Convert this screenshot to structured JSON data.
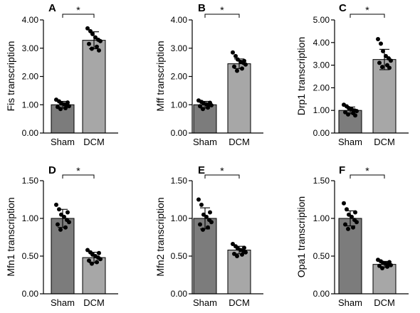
{
  "chart_data": [
    {
      "type": "bar",
      "panel_label": "A",
      "ylabel": "Fis transcription",
      "categories": [
        "Sham",
        "DCM"
      ],
      "values": [
        1.0,
        3.28
      ],
      "error": [
        0.12,
        0.3
      ],
      "ylim": [
        0,
        4
      ],
      "yticks": [
        "0.00",
        "1.00",
        "2.00",
        "3.00",
        "4.00"
      ],
      "significance": "*",
      "points": [
        [
          1.18,
          1.12,
          1.05,
          1.02,
          0.98,
          0.95,
          0.92,
          0.88,
          0.85,
          1.08
        ],
        [
          3.7,
          3.6,
          3.5,
          3.38,
          3.3,
          3.25,
          3.15,
          3.05,
          2.98,
          2.92
        ]
      ],
      "colors": [
        "#7c7c7c",
        "#a7a7a7"
      ]
    },
    {
      "type": "bar",
      "panel_label": "B",
      "ylabel": "Mff transcription",
      "categories": [
        "Sham",
        "DCM"
      ],
      "values": [
        1.0,
        2.45
      ],
      "error": [
        0.12,
        0.17
      ],
      "ylim": [
        0,
        4
      ],
      "yticks": [
        "0.00",
        "1.00",
        "2.00",
        "3.00",
        "4.00"
      ],
      "significance": "*",
      "points": [
        [
          1.15,
          1.1,
          1.05,
          1.02,
          1.0,
          0.98,
          0.95,
          0.9,
          0.85,
          1.07
        ],
        [
          2.85,
          2.72,
          2.6,
          2.52,
          2.48,
          2.42,
          2.35,
          2.28,
          2.2,
          2.55
        ]
      ],
      "colors": [
        "#7c7c7c",
        "#a7a7a7"
      ]
    },
    {
      "type": "bar",
      "panel_label": "C",
      "ylabel": "Drp1 transcription",
      "categories": [
        "Sham",
        "DCM"
      ],
      "values": [
        1.0,
        3.25
      ],
      "error": [
        0.15,
        0.45
      ],
      "ylim": [
        0,
        5
      ],
      "yticks": [
        "0.00",
        "1.00",
        "2.00",
        "3.00",
        "4.00",
        "5.00"
      ],
      "significance": "*",
      "points": [
        [
          1.25,
          1.18,
          1.1,
          1.05,
          1.0,
          0.97,
          0.92,
          0.88,
          0.82,
          0.78
        ],
        [
          4.15,
          3.95,
          3.62,
          3.4,
          3.3,
          3.2,
          3.1,
          3.0,
          2.92,
          2.88
        ]
      ],
      "colors": [
        "#7c7c7c",
        "#a7a7a7"
      ]
    },
    {
      "type": "bar",
      "panel_label": "D",
      "ylabel": "Mfn1 transcription",
      "categories": [
        "Sham",
        "DCM"
      ],
      "values": [
        1.0,
        0.48
      ],
      "error": [
        0.12,
        0.07
      ],
      "ylim": [
        0,
        1.5
      ],
      "yticks": [
        "0.00",
        "0.50",
        "1.00",
        "1.50"
      ],
      "significance": "*",
      "points": [
        [
          1.18,
          1.12,
          1.05,
          1.02,
          0.98,
          0.95,
          0.92,
          0.88,
          0.85,
          1.08
        ],
        [
          0.58,
          0.55,
          0.52,
          0.5,
          0.48,
          0.46,
          0.44,
          0.42,
          0.4,
          0.54
        ]
      ],
      "colors": [
        "#7c7c7c",
        "#a7a7a7"
      ]
    },
    {
      "type": "bar",
      "panel_label": "E",
      "ylabel": "Mfn2 transcription",
      "categories": [
        "Sham",
        "DCM"
      ],
      "values": [
        1.0,
        0.58
      ],
      "error": [
        0.14,
        0.05
      ],
      "ylim": [
        0,
        1.5
      ],
      "yticks": [
        "0.00",
        "0.50",
        "1.00",
        "1.50"
      ],
      "significance": "*",
      "points": [
        [
          1.25,
          1.18,
          1.05,
          1.02,
          0.98,
          0.95,
          0.92,
          0.88,
          0.85,
          1.08
        ],
        [
          0.66,
          0.63,
          0.6,
          0.58,
          0.57,
          0.55,
          0.53,
          0.52,
          0.5,
          0.61
        ]
      ],
      "colors": [
        "#7c7c7c",
        "#a7a7a7"
      ]
    },
    {
      "type": "bar",
      "panel_label": "F",
      "ylabel": "Opa1 transcription",
      "categories": [
        "Sham",
        "DCM"
      ],
      "values": [
        1.0,
        0.39
      ],
      "error": [
        0.1,
        0.04
      ],
      "ylim": [
        0,
        1.5
      ],
      "yticks": [
        "0.00",
        "0.50",
        "1.00",
        "1.50"
      ],
      "significance": "*",
      "points": [
        [
          1.2,
          1.12,
          1.05,
          1.02,
          0.98,
          0.95,
          0.92,
          0.88,
          0.86,
          1.08
        ],
        [
          0.45,
          0.43,
          0.41,
          0.4,
          0.39,
          0.38,
          0.37,
          0.36,
          0.34,
          0.42
        ]
      ],
      "colors": [
        "#7c7c7c",
        "#a7a7a7"
      ]
    }
  ]
}
